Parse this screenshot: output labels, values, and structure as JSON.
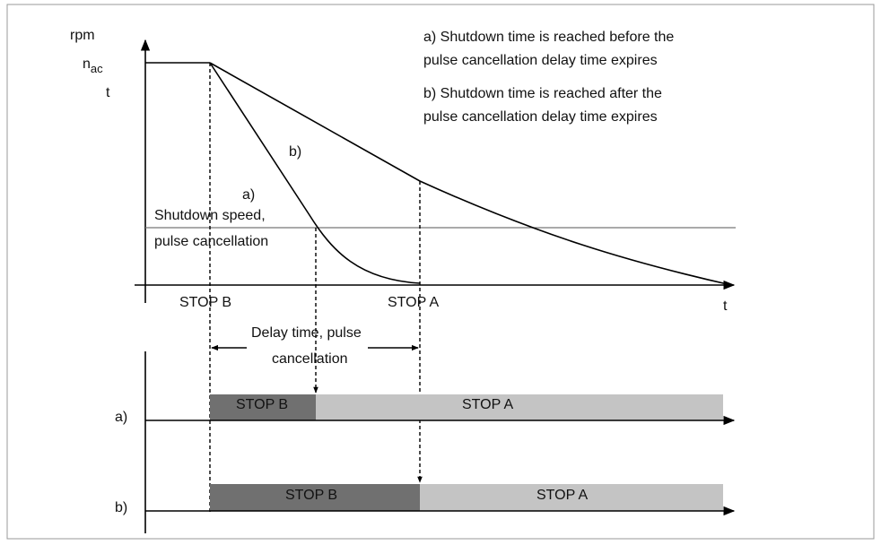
{
  "axis": {
    "y_label": "rpm",
    "speed_label": "n",
    "speed_subscript": "ac",
    "speed_suffix": "t",
    "x_label": "t",
    "stop_b": "STOP B",
    "stop_a": "STOP A"
  },
  "legend": {
    "a": [
      "a) Shutdown time is reached before the",
      "pulse cancellation delay time expires"
    ],
    "b": [
      "b) Shutdown time is reached after the",
      "pulse cancellation delay time expires"
    ]
  },
  "curves": {
    "a": "a)",
    "b": "b)"
  },
  "threshold": [
    "Shutdown speed,",
    "pulse cancellation"
  ],
  "delay": [
    "Delay time, pulse",
    "cancellation"
  ],
  "rows": [
    {
      "label": "a)",
      "segments": [
        "STOP B",
        "STOP A"
      ]
    },
    {
      "label": "b)",
      "segments": [
        "STOP B",
        "STOP A"
      ]
    }
  ]
}
